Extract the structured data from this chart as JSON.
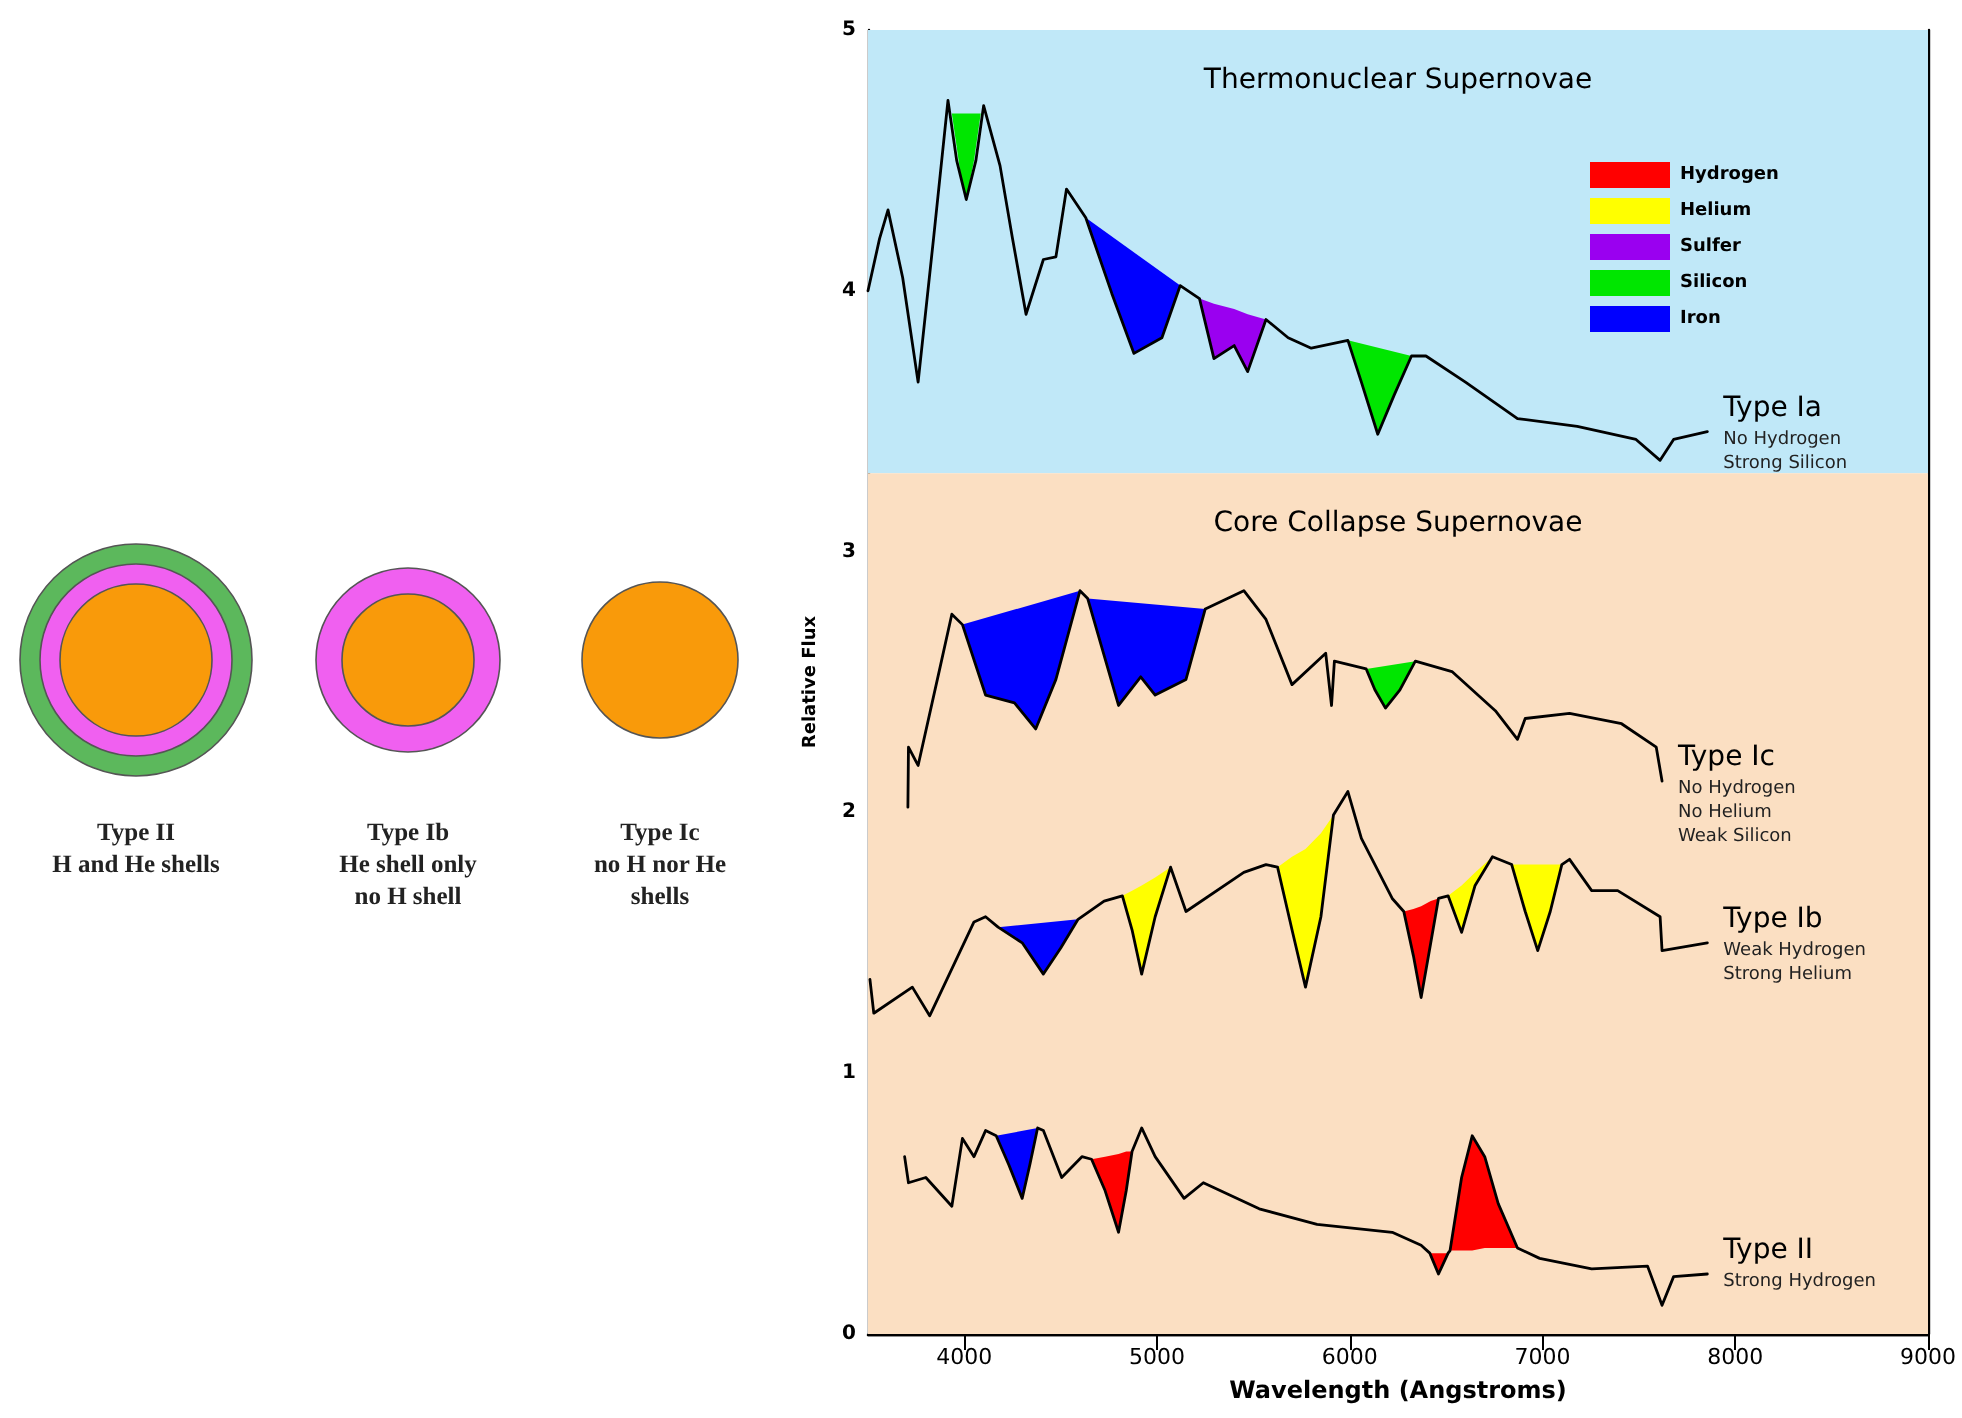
{
  "chart_data": {
    "type": "line",
    "xlabel": "Wavelength (Angstroms)",
    "ylabel": "Relative Flux",
    "xlim": [
      3500,
      9000
    ],
    "xticks": [
      4000,
      5000,
      6000,
      7000,
      8000,
      9000
    ],
    "ylim": [
      0,
      5
    ],
    "yticks": [
      0,
      1,
      2,
      3,
      4,
      5
    ],
    "legend": "top right",
    "bands": [
      {
        "axis": "y",
        "from": 3.3,
        "to": 5,
        "label": "Thermonuclear Supernovae",
        "color": "#c0e8f8"
      },
      {
        "axis": "y",
        "from": 0,
        "to": 3.3,
        "label": "Core Collapse Supernovae",
        "color": "#fbdfc2"
      }
    ],
    "series": [
      {
        "name": "Type Ia",
        "color": "#000000",
        "x": [
          3500,
          3560,
          3604,
          3680,
          3760,
          3840,
          3915,
          3960,
          4010,
          4060,
          4100,
          4185,
          4250,
          4320,
          4410,
          4475,
          4530,
          4630,
          4765,
          4880,
          5025,
          5120,
          5220,
          5295,
          5400,
          5470,
          5565,
          5680,
          5800,
          5990,
          6060,
          6145,
          6230,
          6320,
          6395,
          6600,
          6870,
          7180,
          7485,
          7610,
          7680,
          7855
        ],
        "values": [
          4.0,
          4.2,
          4.31,
          4.05,
          3.65,
          4.2,
          4.73,
          4.5,
          4.35,
          4.5,
          4.71,
          4.48,
          4.2,
          3.91,
          4.12,
          4.13,
          4.39,
          4.28,
          3.99,
          3.76,
          3.82,
          4.02,
          3.97,
          3.74,
          3.79,
          3.69,
          3.89,
          3.82,
          3.78,
          3.81,
          3.65,
          3.45,
          3.6,
          3.75,
          3.75,
          3.65,
          3.51,
          3.48,
          3.43,
          3.35,
          3.43,
          3.46
        ]
      },
      {
        "name": "Type Ic",
        "color": "#000000",
        "x": [
          3707,
          3710,
          3760,
          3875,
          3935,
          3990,
          4110,
          4260,
          4370,
          4475,
          4600,
          4640,
          4800,
          4915,
          4990,
          5150,
          5250,
          5450,
          5565,
          5700,
          5875,
          5905,
          5920,
          6085,
          6130,
          6185,
          6260,
          6340,
          6530,
          6755,
          6870,
          6910,
          7140,
          7410,
          7590,
          7620
        ],
        "values": [
          2.02,
          2.25,
          2.18,
          2.56,
          2.76,
          2.72,
          2.45,
          2.42,
          2.32,
          2.51,
          2.85,
          2.82,
          2.41,
          2.52,
          2.45,
          2.51,
          2.78,
          2.85,
          2.74,
          2.49,
          2.61,
          2.41,
          2.58,
          2.55,
          2.47,
          2.4,
          2.47,
          2.58,
          2.54,
          2.39,
          2.28,
          2.36,
          2.38,
          2.34,
          2.25,
          2.12
        ]
      },
      {
        "name": "Type Ib",
        "color": "#000000",
        "x": [
          3510,
          3530,
          3730,
          3820,
          4050,
          4110,
          4175,
          4300,
          4410,
          4500,
          4590,
          4725,
          4820,
          4870,
          4920,
          4990,
          5070,
          5150,
          5450,
          5565,
          5625,
          5700,
          5770,
          5850,
          5915,
          5990,
          6060,
          6220,
          6280,
          6330,
          6370,
          6420,
          6460,
          6510,
          6580,
          6650,
          6740,
          6840,
          6910,
          6975,
          7040,
          7100,
          7140,
          7255,
          7390,
          7610,
          7620,
          7855
        ],
        "values": [
          1.36,
          1.23,
          1.33,
          1.22,
          1.58,
          1.6,
          1.56,
          1.5,
          1.38,
          1.48,
          1.59,
          1.66,
          1.68,
          1.55,
          1.38,
          1.6,
          1.79,
          1.62,
          1.77,
          1.8,
          1.79,
          1.55,
          1.33,
          1.6,
          1.99,
          2.08,
          1.9,
          1.67,
          1.62,
          1.45,
          1.29,
          1.5,
          1.67,
          1.68,
          1.54,
          1.72,
          1.83,
          1.8,
          1.62,
          1.47,
          1.62,
          1.8,
          1.82,
          1.7,
          1.7,
          1.6,
          1.47,
          1.5
        ]
      },
      {
        "name": "Type II",
        "color": "#000000",
        "x": [
          3690,
          3710,
          3800,
          3935,
          3990,
          4050,
          4110,
          4165,
          4230,
          4300,
          4340,
          4380,
          4410,
          4505,
          4610,
          4660,
          4730,
          4800,
          4840,
          4870,
          4920,
          4990,
          5140,
          5240,
          5530,
          5830,
          6220,
          6370,
          6415,
          6460,
          6510,
          6520,
          6580,
          6635,
          6700,
          6770,
          6870,
          6985,
          7255,
          7545,
          7620,
          7680,
          7855
        ],
        "values": [
          0.68,
          0.58,
          0.6,
          0.49,
          0.75,
          0.68,
          0.78,
          0.76,
          0.65,
          0.52,
          0.65,
          0.79,
          0.78,
          0.6,
          0.68,
          0.67,
          0.55,
          0.39,
          0.55,
          0.7,
          0.79,
          0.68,
          0.52,
          0.58,
          0.48,
          0.42,
          0.39,
          0.34,
          0.31,
          0.23,
          0.31,
          0.32,
          0.6,
          0.76,
          0.68,
          0.5,
          0.33,
          0.29,
          0.25,
          0.26,
          0.11,
          0.22,
          0.23
        ]
      },
      {
        "name": "Hydrogen",
        "type": "area",
        "color": "#ff0000",
        "x": [
          6280,
          6330,
          6370,
          6420,
          6460,
          6420,
          6370,
          6330,
          null,
          4660,
          4730,
          4800,
          4840,
          4870,
          4840,
          4800,
          4730,
          null,
          6415,
          6460,
          6510,
          6460,
          null,
          6520,
          6580,
          6635,
          6700,
          6770,
          6870,
          6700,
          6635,
          6580
        ],
        "values": [
          1.62,
          1.63,
          1.64,
          1.66,
          1.67,
          1.5,
          1.29,
          1.45,
          null,
          0.67,
          0.68,
          0.69,
          0.7,
          0.7,
          0.55,
          0.39,
          0.55,
          null,
          0.31,
          0.31,
          0.31,
          0.23,
          null,
          0.32,
          0.6,
          0.76,
          0.68,
          0.5,
          0.33,
          0.33,
          0.32,
          0.32
        ]
      },
      {
        "name": "Helium",
        "type": "area",
        "color": "#ffff00",
        "x": [
          4820,
          4870,
          4920,
          4990,
          5070,
          4990,
          4920,
          4870,
          null,
          5625,
          5700,
          5770,
          5850,
          5915,
          5850,
          5770,
          5700,
          null,
          6510,
          6580,
          6650,
          6740,
          6650,
          6580,
          null,
          6840,
          6910,
          6975,
          7040,
          7100,
          7040,
          6975,
          6910
        ],
        "values": [
          1.68,
          1.7,
          1.72,
          1.75,
          1.79,
          1.6,
          1.38,
          1.55,
          null,
          1.79,
          1.83,
          1.86,
          1.92,
          1.99,
          1.6,
          1.33,
          1.55,
          null,
          1.68,
          1.72,
          1.77,
          1.83,
          1.72,
          1.54,
          null,
          1.8,
          1.8,
          1.8,
          1.8,
          1.8,
          1.62,
          1.47,
          1.62
        ]
      },
      {
        "name": "Sulfer",
        "type": "area",
        "color": "#9a00f0",
        "x": [
          5220,
          5295,
          5400,
          5470,
          5565,
          5470,
          5400,
          5295
        ],
        "values": [
          3.97,
          3.95,
          3.93,
          3.91,
          3.89,
          3.69,
          3.79,
          3.74
        ]
      },
      {
        "name": "Silicon",
        "type": "area",
        "color": "#00e600",
        "x": [
          3935,
          4085,
          4050,
          4010,
          3980,
          null,
          5990,
          6320,
          6230,
          6145,
          6060,
          null,
          6085,
          6340,
          6260,
          6185,
          6130
        ],
        "values": [
          4.68,
          4.68,
          4.5,
          4.35,
          4.45,
          null,
          3.81,
          3.75,
          3.6,
          3.45,
          3.65,
          null,
          2.55,
          2.58,
          2.47,
          2.4,
          2.47
        ]
      },
      {
        "name": "Iron",
        "type": "area",
        "color": "#0000ff",
        "x": [
          4630,
          5120,
          5025,
          4880,
          4765,
          null,
          3990,
          4600,
          4475,
          4370,
          4260,
          4110,
          null,
          4640,
          5250,
          5150,
          4990,
          4915,
          4800,
          null,
          4175,
          4590,
          4500,
          4410,
          4300,
          null,
          4165,
          4380,
          4340,
          4300,
          4230
        ],
        "values": [
          4.28,
          4.02,
          3.82,
          3.76,
          3.99,
          null,
          2.72,
          2.85,
          2.51,
          2.32,
          2.42,
          2.45,
          null,
          2.82,
          2.78,
          2.51,
          2.45,
          2.52,
          2.41,
          null,
          1.56,
          1.59,
          1.48,
          1.38,
          1.5,
          null,
          0.76,
          0.79,
          0.65,
          0.52,
          0.65
        ]
      }
    ],
    "annotations": [
      "Type II",
      "H and He shells",
      "Type Ib",
      "He shell only\nno H shell",
      "Type Ic",
      "no H nor He\nshells",
      "No Hydrogen\nStrong Silicon",
      "No Hydrogen\nNo Helium\nWeak Silicon",
      "Weak Hydrogen\nStrong Helium",
      "Strong Hydrogen"
    ]
  }
}
